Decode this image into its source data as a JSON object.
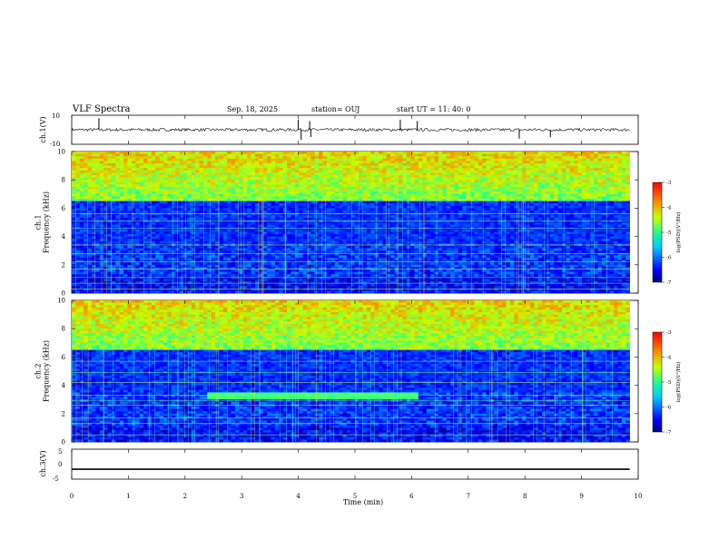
{
  "header": {
    "title": "VLF Spectra",
    "date": "Sep. 18, 2025",
    "station": "station= OUJ",
    "start": "start  UT  =   11: 40: 0"
  },
  "chart_data": [
    {
      "type": "line",
      "name": "ch1-waveform",
      "ylabel": "ch.1(V)",
      "yticks": [
        "10",
        "-10"
      ],
      "ylim": [
        -10,
        10
      ],
      "xlim": [
        0,
        10
      ],
      "baseline": 0,
      "noise_amplitude": 2,
      "spikes": [
        {
          "x": 0.48,
          "y": 8
        },
        {
          "x": 4.0,
          "y": 7
        },
        {
          "x": 4.05,
          "y": -7
        },
        {
          "x": 4.2,
          "y": 6
        },
        {
          "x": 4.22,
          "y": -5
        },
        {
          "x": 5.8,
          "y": 7
        },
        {
          "x": 6.1,
          "y": 6
        },
        {
          "x": 7.9,
          "y": -6
        },
        {
          "x": 8.45,
          "y": -5
        }
      ]
    },
    {
      "type": "heatmap",
      "name": "ch1-spectrogram",
      "ylabel": "ch.1\nFrequency  (kHz)",
      "xlim": [
        0,
        9.85
      ],
      "ylim": [
        0,
        10
      ],
      "yticks": [
        "0",
        "2",
        "4",
        "6",
        "8",
        "10"
      ],
      "noise_upper_edge_khz": 6.5,
      "quiet_band_khz": [
        3.5,
        6.5
      ],
      "tone_lines_khz": [
        0.3,
        0.7,
        1.1,
        1.7,
        2.2,
        2.8,
        3.4,
        4.6,
        5.1,
        5.6,
        7.2
      ]
    },
    {
      "type": "heatmap",
      "name": "ch2-spectrogram",
      "ylabel": "ch.2\nFrequency  (kHz)",
      "xlim": [
        0,
        9.85
      ],
      "ylim": [
        0,
        10
      ],
      "yticks": [
        "0",
        "2",
        "4",
        "6",
        "8",
        "10"
      ],
      "noise_upper_edge_khz": 6.5,
      "interference_band": {
        "t0": 2.4,
        "t1": 6.1,
        "f0": 3.0,
        "f1": 3.5
      },
      "tone_lines_khz": [
        0.5,
        1.3,
        1.7,
        2.6,
        2.9,
        3.3,
        4.2,
        4.9,
        5.7,
        7.2
      ]
    },
    {
      "type": "line",
      "name": "ch3-waveform",
      "ylabel": "ch.3(V)",
      "yticks": [
        "5",
        "0",
        "-5"
      ],
      "ylim": [
        -5,
        5
      ],
      "xlim": [
        0,
        10
      ],
      "baseline": -1.8
    }
  ],
  "x_axis": {
    "label": "Time  (min)",
    "ticks": [
      "0",
      "1",
      "2",
      "3",
      "4",
      "5",
      "6",
      "7",
      "8",
      "9",
      "10"
    ]
  },
  "colorbars": [
    {
      "label": "log(PSD)(V²/Hz)",
      "ticks": [
        "-3",
        "-4",
        "-5",
        "-6",
        "-7"
      ],
      "range": [
        -7,
        -3
      ]
    },
    {
      "label": "log(PSD)(V²/Hz)",
      "ticks": [
        "-3",
        "-4",
        "-5",
        "-6",
        "-7"
      ],
      "range": [
        -7,
        -3
      ]
    }
  ],
  "colors": {
    "low": "#00007a",
    "mid": "#00e070",
    "high": "#ff0000"
  }
}
